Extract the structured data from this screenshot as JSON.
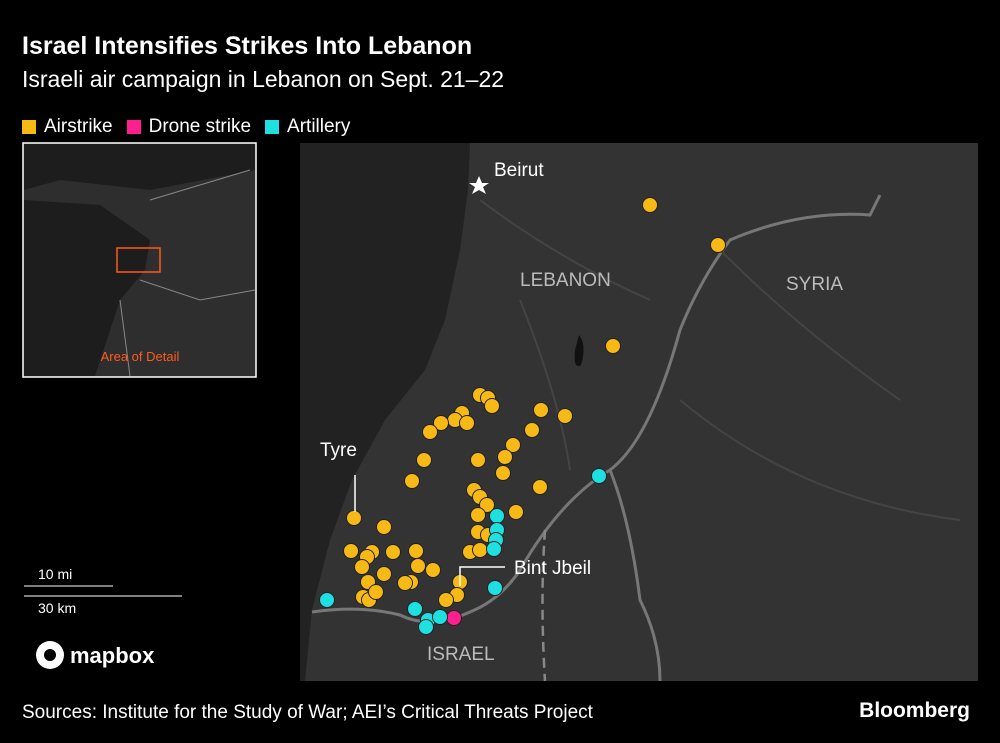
{
  "header": {
    "title": "Israel Intensifies Strikes Into Lebanon",
    "subtitle": "Israeli air campaign in Lebanon on Sept. 21–22"
  },
  "legend": [
    {
      "label": "Airstrike",
      "color": "#f7b915"
    },
    {
      "label": "Drone strike",
      "color": "#ff1f8e"
    },
    {
      "label": "Artillery",
      "color": "#1fe0e0"
    }
  ],
  "inset": {
    "label": "Area of Detail"
  },
  "map_labels": {
    "beirut": "Beirut",
    "lebanon": "LEBANON",
    "syria": "SYRIA",
    "tyre": "Tyre",
    "bint_jbeil": "Bint Jbeil",
    "israel": "ISRAEL"
  },
  "scale": {
    "miles": "10 mi",
    "km": "30 km"
  },
  "attribution": "mapbox",
  "footer": {
    "source": "Sources: Institute for the Study of War; AEI’s Critical Threats Project",
    "brand": "Bloomberg"
  }
}
